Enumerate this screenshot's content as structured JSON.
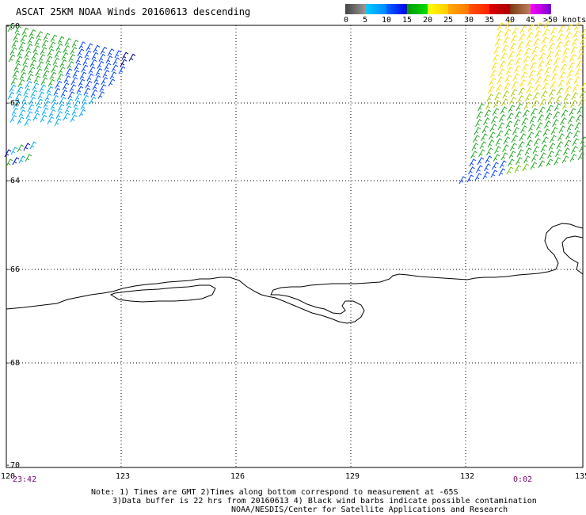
{
  "header": {
    "title": "ASCAT 25KM NOAA Winds 20160613 descending"
  },
  "legend": {
    "colors": [
      "#4a4a4a",
      "#8c8c8c",
      "#00aaff",
      "#0055ff",
      "#0000ff",
      "#00cc00",
      "#ffee00",
      "#ff9900",
      "#ff3300",
      "#cc0000",
      "#8b4513",
      "#ff00ff",
      "#cc00cc",
      "#6600cc"
    ],
    "labels": [
      "0",
      "5",
      "10",
      "15",
      "20",
      "25",
      "30",
      "35",
      "40",
      "45",
      ">50 knots"
    ]
  },
  "axes": {
    "lat_labels": [
      "-60",
      "-62",
      "-64",
      "-66",
      "-68",
      "-70"
    ],
    "lon_labels": [
      "120",
      "123",
      "126",
      "129",
      "132",
      "135"
    ]
  },
  "times": {
    "start": "23:42",
    "end": "0:02"
  },
  "notes": {
    "line1": "Note: 1) Times are GMT 2)Times along bottom correspond to measurement at -65S",
    "line2": "3)Data buffer is 22 hrs from 20160613 4) Black wind barbs indicate possible contamination",
    "line3": "NOAA/NESDIS/Center for Satellite Applications and Research"
  }
}
